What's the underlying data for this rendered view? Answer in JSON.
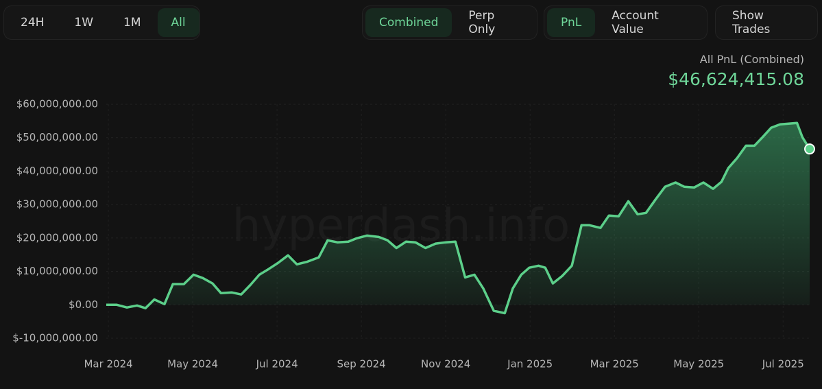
{
  "toolbar": {
    "ranges": [
      "24H",
      "1W",
      "1M",
      "All"
    ],
    "modes": [
      "Combined",
      "Perp Only"
    ],
    "metrics": [
      "PnL",
      "Account Value"
    ],
    "show_trades": "Show Trades"
  },
  "summary": {
    "label": "All PnL (Combined)",
    "value": "$46,624,415.08"
  },
  "watermark": "hyperdash.info",
  "chart_data": {
    "type": "area",
    "color": "#5ccf8a",
    "grid": true,
    "x": [
      -0.05,
      0.2,
      0.44,
      0.68,
      0.88,
      1.09,
      1.33,
      1.53,
      1.79,
      2.02,
      2.24,
      2.47,
      2.67,
      2.93,
      3.15,
      3.37,
      3.58,
      3.8,
      4.02,
      4.26,
      4.47,
      4.72,
      4.99,
      5.2,
      5.43,
      5.69,
      5.89,
      6.13,
      6.41,
      6.62,
      6.83,
      7.06,
      7.28,
      7.52,
      7.76,
      8.0,
      8.23,
      8.46,
      8.68,
      8.89,
      9.14,
      9.4,
      9.59,
      9.79,
      9.98,
      10.2,
      10.36,
      10.54,
      10.76,
      10.99,
      11.22,
      11.41,
      11.67,
      11.87,
      12.1,
      12.33,
      12.55,
      12.75,
      12.98,
      13.2,
      13.45,
      13.66,
      13.89,
      14.11,
      14.34,
      14.54,
      14.7,
      14.91,
      15.12,
      15.32,
      15.51,
      15.72,
      15.93,
      16.13,
      16.33,
      16.46,
      16.63
    ],
    "values": [
      0,
      0,
      -800000,
      -200000,
      -1000000,
      1600000,
      200000,
      6200000,
      6200000,
      9000000,
      8000000,
      6400000,
      3500000,
      3700000,
      3100000,
      6000000,
      9000000,
      10700000,
      12500000,
      14800000,
      12100000,
      12900000,
      14200000,
      19300000,
      18700000,
      18900000,
      19900000,
      20700000,
      20300000,
      19300000,
      17000000,
      18900000,
      18700000,
      17000000,
      18300000,
      18700000,
      18900000,
      8200000,
      9000000,
      4900000,
      -1800000,
      -2500000,
      4900000,
      9000000,
      11100000,
      11700000,
      11100000,
      6400000,
      8600000,
      11700000,
      23800000,
      23800000,
      23000000,
      26700000,
      26500000,
      31000000,
      27100000,
      27500000,
      31600000,
      35300000,
      36600000,
      35300000,
      35100000,
      36600000,
      34700000,
      36800000,
      40900000,
      43900000,
      47600000,
      47600000,
      50100000,
      53000000,
      54000000,
      54200000,
      54400000,
      50100000,
      46624415.08
    ],
    "xlim": [
      -0.05,
      16.63
    ],
    "xticks": [
      {
        "value": 0,
        "label": "Mar 2024"
      },
      {
        "value": 2,
        "label": "May 2024"
      },
      {
        "value": 4,
        "label": "Jul 2024"
      },
      {
        "value": 6,
        "label": "Sep 2024"
      },
      {
        "value": 8,
        "label": "Nov 2024"
      },
      {
        "value": 10,
        "label": "Jan 2025"
      },
      {
        "value": 12,
        "label": "Mar 2025"
      },
      {
        "value": 14,
        "label": "May 2025"
      },
      {
        "value": 16,
        "label": "Jul 2025"
      }
    ],
    "ylim": [
      -10000000,
      60000000
    ],
    "yticks": [
      {
        "value": 60000000,
        "label": "$60,000,000.00"
      },
      {
        "value": 50000000,
        "label": "$50,000,000.00"
      },
      {
        "value": 40000000,
        "label": "$40,000,000.00"
      },
      {
        "value": 30000000,
        "label": "$30,000,000.00"
      },
      {
        "value": 20000000,
        "label": "$20,000,000.00"
      },
      {
        "value": 10000000,
        "label": "$10,000,000.00"
      },
      {
        "value": 0,
        "label": "$0.00"
      },
      {
        "value": -10000000,
        "label": "$-10,000,000.00"
      }
    ]
  }
}
